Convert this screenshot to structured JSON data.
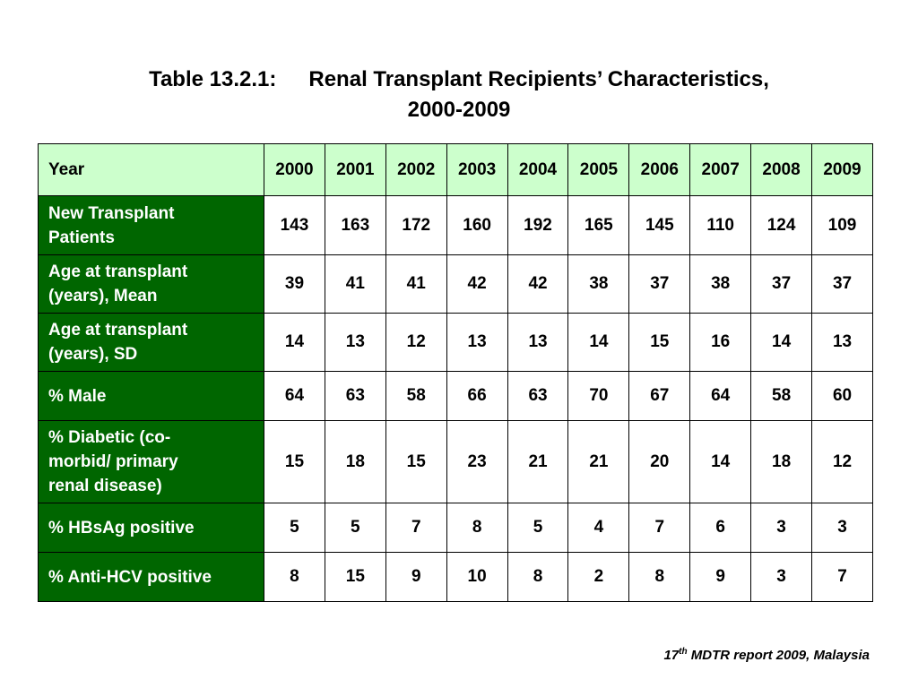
{
  "title": {
    "label": "Table 13.2.1:",
    "text": "Renal Transplant Recipients’ Characteristics,",
    "line2": "2000-2009"
  },
  "table": {
    "header": {
      "label": "Year",
      "years": [
        "2000",
        "2001",
        "2002",
        "2003",
        "2004",
        "2005",
        "2006",
        "2007",
        "2008",
        "2009"
      ]
    },
    "rows": [
      {
        "label_lines": [
          "New Transplant",
          "Patients"
        ],
        "values": [
          "143",
          "163",
          "172",
          "160",
          "192",
          "165",
          "145",
          "110",
          "124",
          "109"
        ]
      },
      {
        "label_lines": [
          "Age at transplant",
          "(years), Mean"
        ],
        "values": [
          "39",
          "41",
          "41",
          "42",
          "42",
          "38",
          "37",
          "38",
          "37",
          "37"
        ]
      },
      {
        "label_lines": [
          "Age at transplant",
          "(years), SD"
        ],
        "values": [
          "14",
          "13",
          "12",
          "13",
          "13",
          "14",
          "15",
          "16",
          "14",
          "13"
        ]
      },
      {
        "label_lines": [
          "% Male"
        ],
        "values": [
          "64",
          "63",
          "58",
          "66",
          "63",
          "70",
          "67",
          "64",
          "58",
          "60"
        ]
      },
      {
        "label_lines": [
          "% Diabetic (co-",
          "morbid/ primary",
          "renal disease)"
        ],
        "values": [
          "15",
          "18",
          "15",
          "23",
          "21",
          "21",
          "20",
          "14",
          "18",
          "12"
        ]
      },
      {
        "label_lines": [
          "% HBsAg positive"
        ],
        "values": [
          "5",
          "5",
          "7",
          "8",
          "5",
          "4",
          "7",
          "6",
          "3",
          "3"
        ]
      },
      {
        "label_lines": [
          "% Anti-HCV positive"
        ],
        "values": [
          "8",
          "15",
          "9",
          "10",
          "8",
          "2",
          "8",
          "9",
          "3",
          "7"
        ]
      }
    ]
  },
  "footer": {
    "number": "17",
    "superscript": "th",
    "text": " MDTR report 2009, Malaysia"
  },
  "colors": {
    "header_bg": "#ccffcc",
    "rowhead_bg": "#006600",
    "rowhead_text": "#ffffff"
  }
}
